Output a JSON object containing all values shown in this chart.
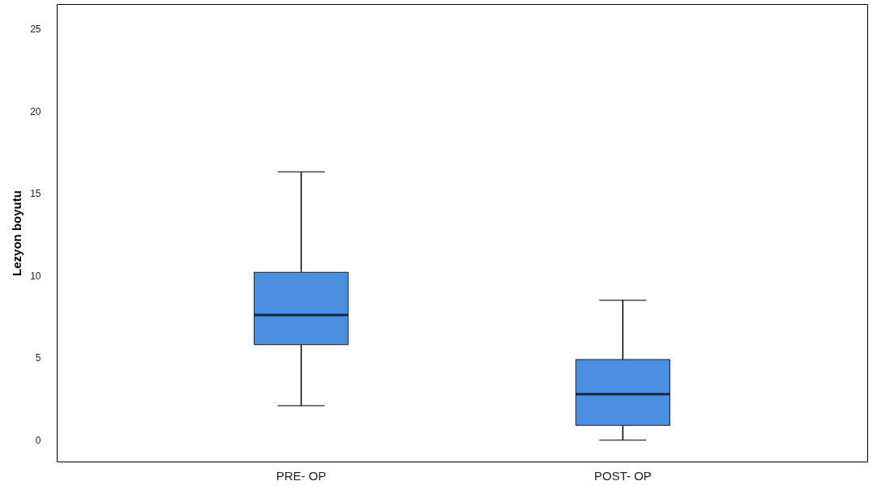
{
  "chart_data": {
    "type": "box",
    "ylabel": "Lezyon boyutu",
    "categories": [
      "PRE- OP",
      "POST- OP"
    ],
    "boxes": [
      {
        "low": 2.1,
        "q1": 5.8,
        "median": 7.6,
        "q3": 10.2,
        "high": 16.3
      },
      {
        "low": 0,
        "q1": 0.9,
        "median": 2.8,
        "q3": 4.9,
        "high": 8.5
      }
    ],
    "color": "#4a8fe0",
    "ylim": [
      -1.3,
      26.5
    ],
    "yticks": [
      0,
      5,
      10,
      15,
      20,
      25
    ],
    "grid": false
  }
}
